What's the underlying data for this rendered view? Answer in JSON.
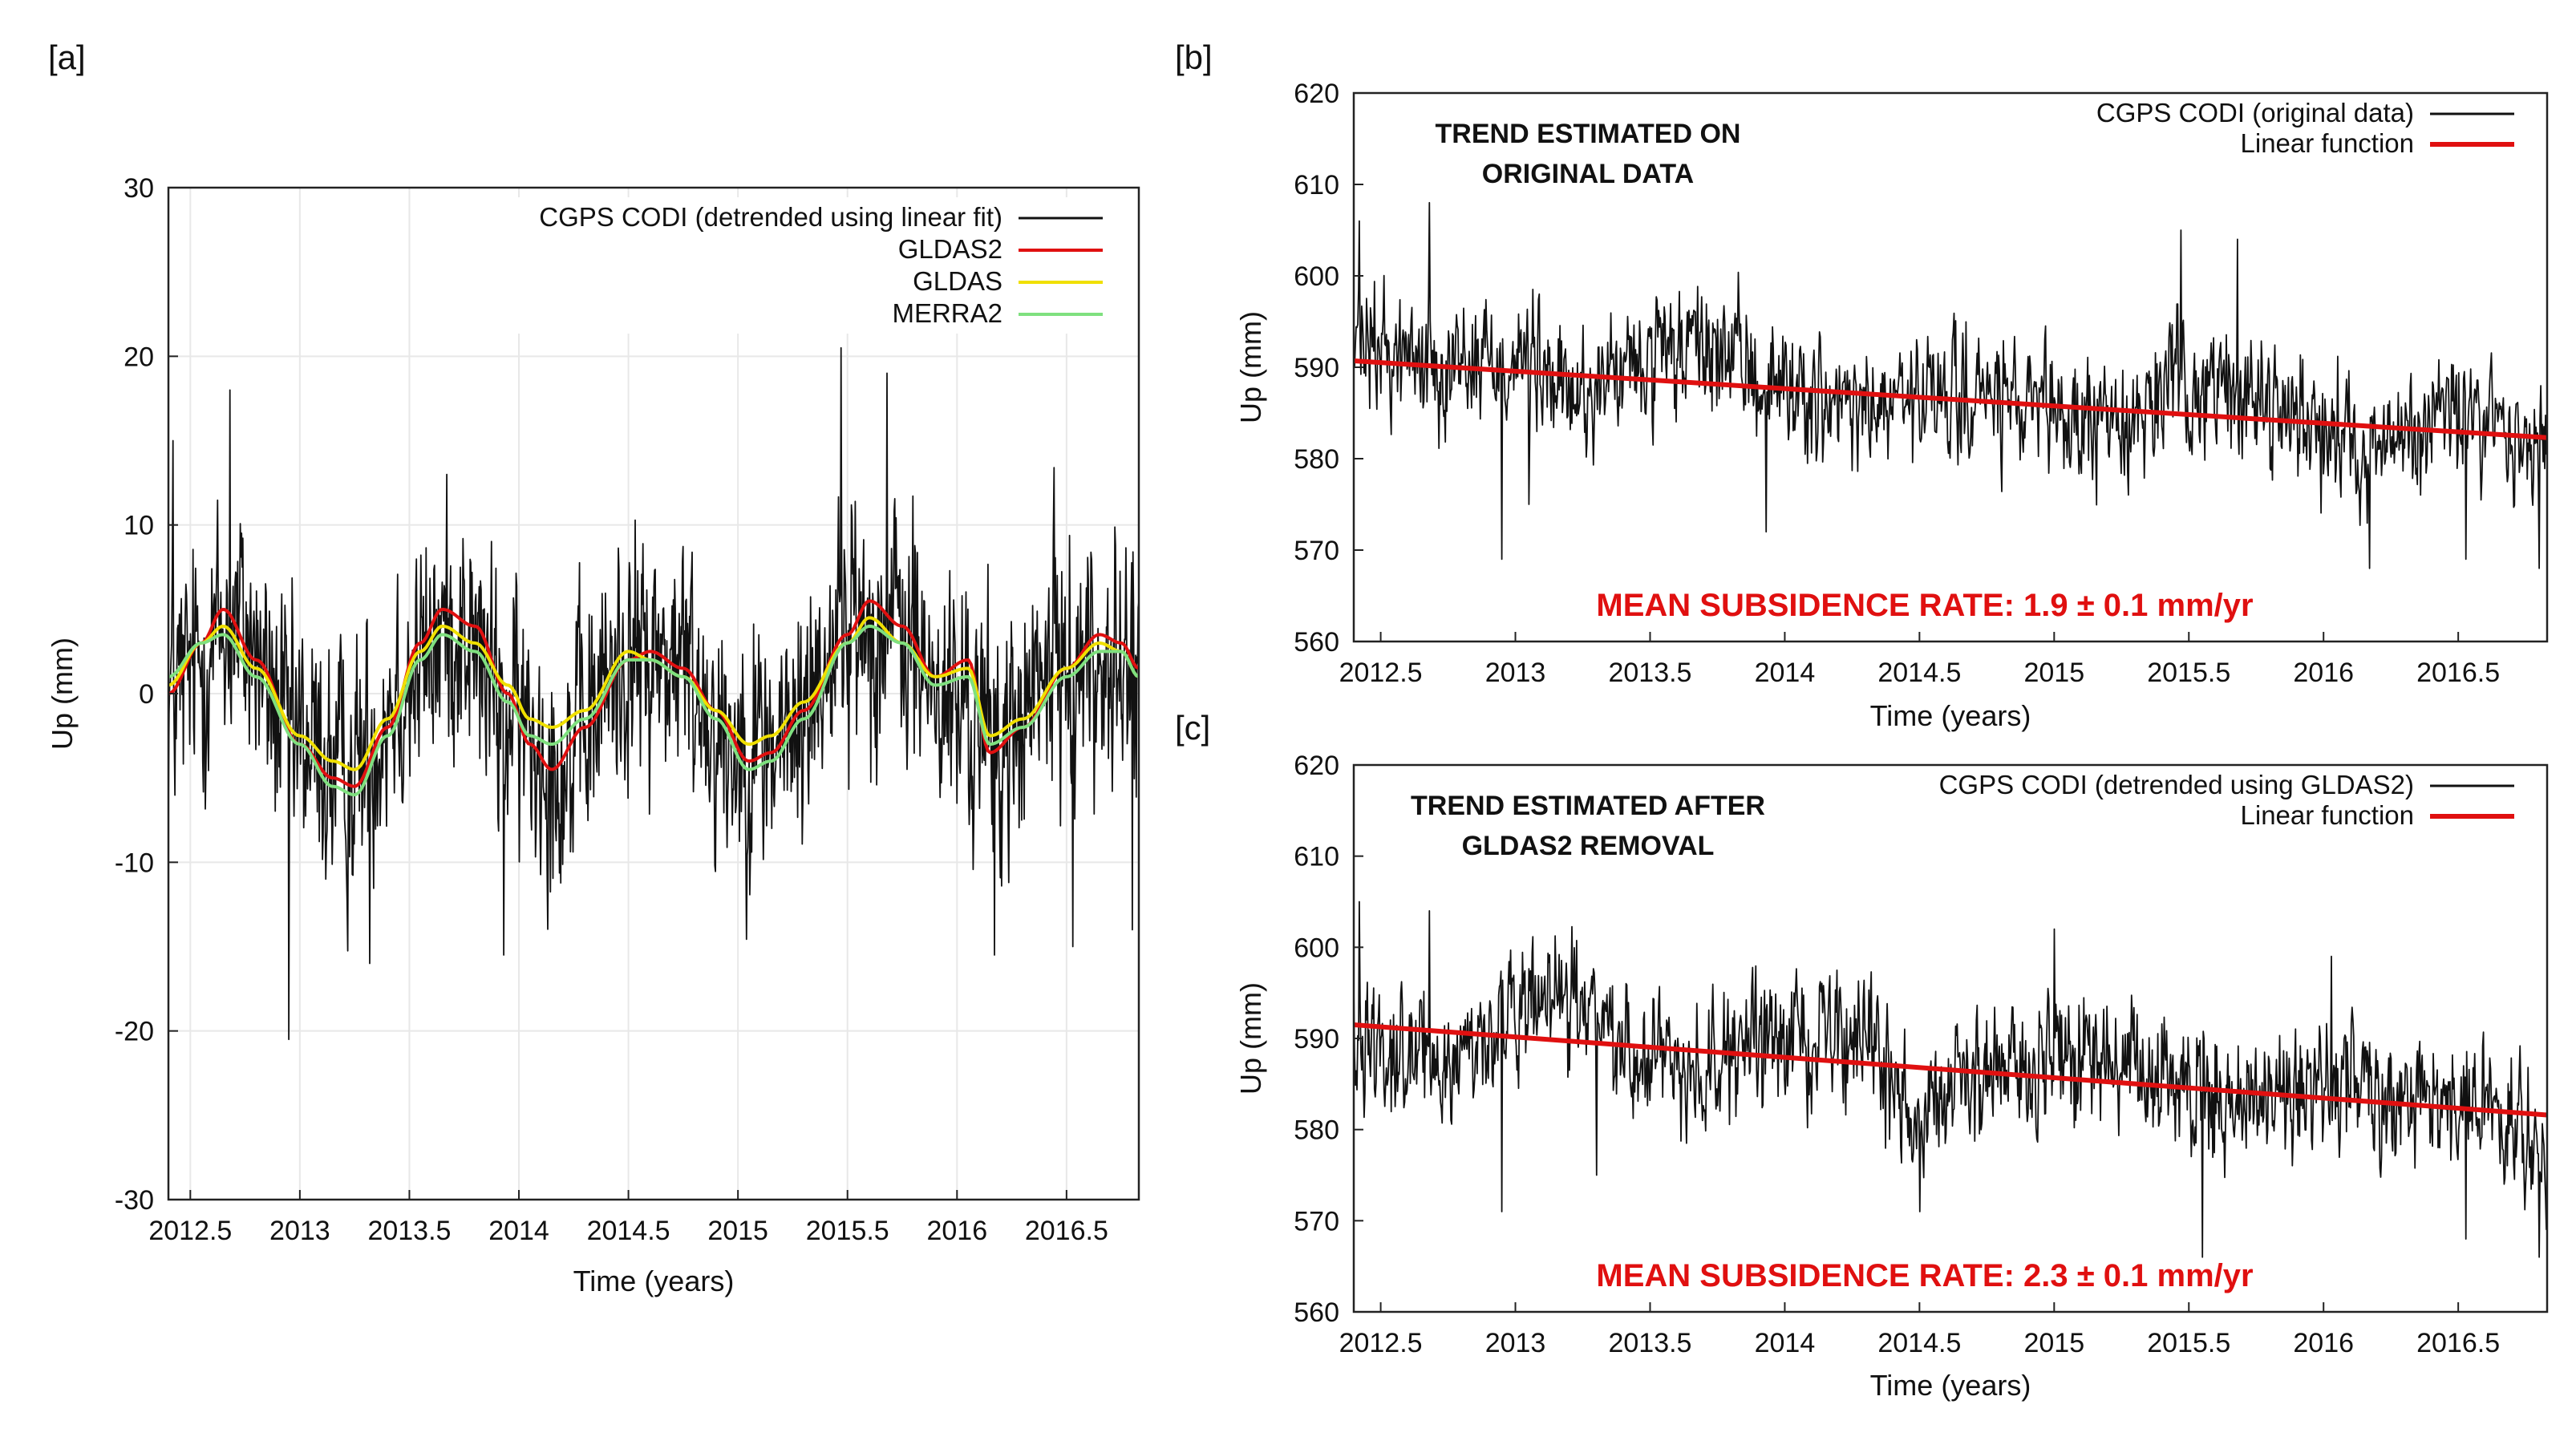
{
  "colors": {
    "cgps": "#111111",
    "gldas2": "#e01010",
    "gldas": "#f0e000",
    "merra2": "#7fe07f",
    "linear": "#e01010",
    "rate_text": "#e01010",
    "grid": "#e8e8e8"
  },
  "chart_data": [
    {
      "id": "a",
      "panel_label": "[a]",
      "type": "line",
      "title": "",
      "xlabel": "Time (years)",
      "ylabel": "Up (mm)",
      "xlim": [
        2012.4,
        2016.83
      ],
      "ylim": [
        -30,
        30
      ],
      "xticks": [
        2012.5,
        2013,
        2013.5,
        2014,
        2014.5,
        2015,
        2015.5,
        2016,
        2016.5
      ],
      "xtick_labels": [
        "2012.5",
        "2013",
        "2013.5",
        "2014",
        "2014.5",
        "2015",
        "2015.5",
        "2016",
        "2016.5"
      ],
      "yticks": [
        -30,
        -20,
        -10,
        0,
        10,
        20,
        30
      ],
      "ytick_labels": [
        "-30",
        "-20",
        "-10",
        "0",
        "10",
        "20",
        "30"
      ],
      "grid": true,
      "legend_position": "top-right",
      "series": [
        {
          "name": "CGPS CODI (detrended using linear fit)",
          "kind": "noisy",
          "color_key": "cgps",
          "envelope_x": [
            2012.4,
            2012.7,
            2013.0,
            2013.2,
            2013.5,
            2013.7,
            2014.0,
            2014.2,
            2014.5,
            2014.7,
            2015.0,
            2015.2,
            2015.5,
            2015.7,
            2016.0,
            2016.2,
            2016.5,
            2016.83
          ],
          "envelope_y": [
            0,
            4,
            -3,
            -5,
            1,
            4,
            -2,
            -4,
            2,
            2,
            -3,
            -3,
            4,
            4,
            -1,
            -3,
            2,
            1
          ],
          "noise_amp": 5.5,
          "spikes": [
            [
              2012.42,
              15
            ],
            [
              2012.68,
              18
            ],
            [
              2012.95,
              -20.5
            ],
            [
              2013.32,
              -16
            ],
            [
              2013.93,
              -15.5
            ],
            [
              2015.47,
              20.5
            ],
            [
              2015.68,
              19
            ],
            [
              2016.17,
              -15.5
            ],
            [
              2016.53,
              -15
            ],
            [
              2016.8,
              -14
            ]
          ]
        },
        {
          "name": "GLDAS2",
          "kind": "smooth",
          "color_key": "gldas2",
          "x": [
            2012.4,
            2012.55,
            2012.65,
            2012.8,
            2013.0,
            2013.15,
            2013.25,
            2013.4,
            2013.55,
            2013.65,
            2013.8,
            2013.95,
            2014.05,
            2014.15,
            2014.3,
            2014.5,
            2014.6,
            2014.75,
            2014.9,
            2015.05,
            2015.15,
            2015.3,
            2015.5,
            2015.6,
            2015.75,
            2015.9,
            2016.05,
            2016.15,
            2016.3,
            2016.5,
            2016.65,
            2016.75,
            2016.83
          ],
          "values": [
            0,
            3,
            5,
            2,
            -3,
            -5,
            -5.5,
            -2,
            3,
            5,
            4,
            0,
            -3,
            -4.5,
            -2,
            2,
            2.5,
            1.5,
            -1,
            -4,
            -3.5,
            -1,
            3.5,
            5.5,
            4,
            1,
            2,
            -3.5,
            -2,
            1.5,
            3.5,
            3,
            1.5
          ]
        },
        {
          "name": "GLDAS",
          "kind": "smooth",
          "color_key": "gldas",
          "x": [
            2012.4,
            2012.55,
            2012.65,
            2012.8,
            2013.0,
            2013.15,
            2013.25,
            2013.4,
            2013.55,
            2013.65,
            2013.8,
            2013.95,
            2014.05,
            2014.15,
            2014.3,
            2014.5,
            2014.6,
            2014.75,
            2014.9,
            2015.05,
            2015.15,
            2015.3,
            2015.5,
            2015.6,
            2015.75,
            2015.9,
            2016.05,
            2016.15,
            2016.3,
            2016.5,
            2016.65,
            2016.75,
            2016.83
          ],
          "values": [
            0.5,
            3,
            4,
            1.5,
            -2.5,
            -4,
            -4.5,
            -1.5,
            2.5,
            4,
            3,
            0.5,
            -1.5,
            -2,
            -1,
            2.5,
            2,
            1,
            -1,
            -3,
            -2.5,
            -0.5,
            3,
            4.5,
            3,
            1,
            1.5,
            -2.5,
            -1.5,
            1.5,
            3,
            2.5,
            1
          ]
        },
        {
          "name": "MERRA2",
          "kind": "smooth",
          "color_key": "merra2",
          "x": [
            2012.4,
            2012.55,
            2012.65,
            2012.8,
            2013.0,
            2013.15,
            2013.25,
            2013.4,
            2013.55,
            2013.65,
            2013.8,
            2013.95,
            2014.05,
            2014.15,
            2014.3,
            2014.5,
            2014.6,
            2014.75,
            2014.9,
            2015.05,
            2015.15,
            2015.3,
            2015.5,
            2015.6,
            2015.75,
            2015.9,
            2016.05,
            2016.15,
            2016.3,
            2016.5,
            2016.65,
            2016.75,
            2016.83
          ],
          "values": [
            1,
            3,
            3.5,
            1,
            -3,
            -5.5,
            -6,
            -2.5,
            2,
            3.5,
            2.5,
            -0.5,
            -2.5,
            -3,
            -1.5,
            2,
            2,
            1,
            -1.5,
            -4.5,
            -4,
            -1.5,
            3,
            4,
            3,
            0.5,
            1,
            -3,
            -2,
            1,
            2.5,
            2.5,
            1
          ]
        }
      ]
    },
    {
      "id": "b",
      "panel_label": "[b]",
      "type": "line",
      "title": "",
      "box_title": [
        "TREND ESTIMATED ON",
        "ORIGINAL DATA"
      ],
      "rate_text": "MEAN SUBSIDENCE RATE: 1.9 ± 0.1 mm/yr",
      "xlabel": "Time (years)",
      "ylabel": "Up (mm)",
      "xlim": [
        2012.4,
        2016.83
      ],
      "ylim": [
        560,
        620
      ],
      "xticks": [
        2012.5,
        2013,
        2013.5,
        2014,
        2014.5,
        2015,
        2015.5,
        2016,
        2016.5
      ],
      "xtick_labels": [
        "2012.5",
        "2013",
        "2013.5",
        "2014",
        "2014.5",
        "2015",
        "2015.5",
        "2016",
        "2016.5"
      ],
      "yticks": [
        560,
        570,
        580,
        590,
        600,
        610,
        620
      ],
      "ytick_labels": [
        "560",
        "570",
        "580",
        "590",
        "600",
        "610",
        "620"
      ],
      "grid": false,
      "legend_position": "top-right",
      "series": [
        {
          "name": "CGPS CODI (original data)",
          "kind": "noisy",
          "color_key": "cgps",
          "envelope_x": [
            2012.4,
            2012.7,
            2013.0,
            2013.2,
            2013.5,
            2013.7,
            2014.0,
            2014.2,
            2014.5,
            2014.7,
            2015.0,
            2015.2,
            2015.5,
            2015.7,
            2016.0,
            2016.2,
            2016.5,
            2016.83
          ],
          "envelope_y": [
            592,
            591,
            591,
            587,
            590,
            592,
            588,
            585,
            586,
            587,
            584,
            584,
            588,
            587,
            584,
            581,
            585,
            581
          ],
          "noise_amp": 5,
          "spikes": [
            [
              2012.42,
              606
            ],
            [
              2012.68,
              608
            ],
            [
              2012.95,
              569
            ],
            [
              2013.05,
              575
            ],
            [
              2013.93,
              572
            ],
            [
              2015.47,
              605
            ],
            [
              2015.68,
              604
            ],
            [
              2016.17,
              568
            ],
            [
              2016.53,
              569
            ],
            [
              2016.8,
              568
            ]
          ]
        },
        {
          "name": "Linear function",
          "kind": "linear",
          "color_key": "linear",
          "x": [
            2012.4,
            2016.83
          ],
          "values": [
            590.7,
            582.3
          ]
        }
      ]
    },
    {
      "id": "c",
      "panel_label": "[c]",
      "type": "line",
      "title": "",
      "box_title": [
        "TREND ESTIMATED AFTER",
        "GLDAS2 REMOVAL"
      ],
      "rate_text": "MEAN SUBSIDENCE RATE: 2.3 ± 0.1 mm/yr",
      "xlabel": "Time (years)",
      "ylabel": "Up (mm)",
      "xlim": [
        2012.4,
        2016.83
      ],
      "ylim": [
        560,
        620
      ],
      "xticks": [
        2012.5,
        2013,
        2013.5,
        2014,
        2014.5,
        2015,
        2015.5,
        2016,
        2016.5
      ],
      "xtick_labels": [
        "2012.5",
        "2013",
        "2013.5",
        "2014",
        "2014.5",
        "2015",
        "2015.5",
        "2016",
        "2016.5"
      ],
      "yticks": [
        560,
        570,
        580,
        590,
        600,
        610,
        620
      ],
      "ytick_labels": [
        "560",
        "570",
        "580",
        "590",
        "600",
        "610",
        "620"
      ],
      "grid": false,
      "legend_position": "top-right",
      "series": [
        {
          "name": "CGPS CODI (detrended using GLDAS2)",
          "kind": "noisy",
          "color_key": "cgps",
          "envelope_x": [
            2012.4,
            2012.7,
            2013.0,
            2013.2,
            2013.5,
            2013.7,
            2014.0,
            2014.2,
            2014.5,
            2014.7,
            2015.0,
            2015.2,
            2015.5,
            2015.7,
            2016.0,
            2016.2,
            2016.5,
            2016.83
          ],
          "envelope_y": [
            591,
            587,
            592,
            594,
            588,
            587,
            590,
            591,
            583,
            585,
            588,
            587,
            584,
            583,
            585,
            585,
            583,
            578
          ],
          "noise_amp": 5,
          "spikes": [
            [
              2012.42,
              605
            ],
            [
              2012.68,
              604
            ],
            [
              2012.95,
              571
            ],
            [
              2013.3,
              575
            ],
            [
              2014.5,
              571
            ],
            [
              2015.0,
              602
            ],
            [
              2015.55,
              566
            ],
            [
              2016.03,
              599
            ],
            [
              2016.53,
              568
            ],
            [
              2016.8,
              566
            ]
          ]
        },
        {
          "name": "Linear function",
          "kind": "linear",
          "color_key": "linear",
          "x": [
            2012.4,
            2016.83
          ],
          "values": [
            591.5,
            581.6
          ]
        }
      ]
    }
  ]
}
